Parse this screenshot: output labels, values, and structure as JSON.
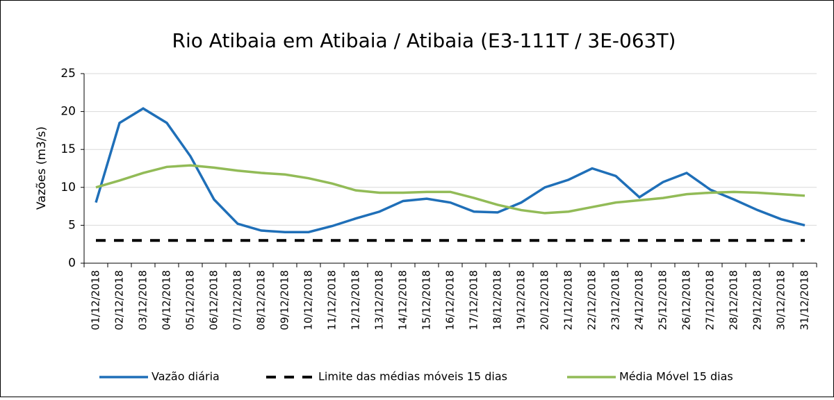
{
  "chart_data": {
    "type": "line",
    "title": "Rio Atibaia em Atibaia / Atibaia (E3-111T / 3E-063T)",
    "y_label": "Vazões (m3/s)",
    "categories": [
      "01/12/2018",
      "02/12/2018",
      "03/12/2018",
      "04/12/2018",
      "05/12/2018",
      "06/12/2018",
      "07/12/2018",
      "08/12/2018",
      "09/12/2018",
      "10/12/2018",
      "11/12/2018",
      "12/12/2018",
      "13/12/2018",
      "14/12/2018",
      "15/12/2018",
      "16/12/2018",
      "17/12/2018",
      "18/12/2018",
      "19/12/2018",
      "20/12/2018",
      "21/12/2018",
      "22/12/2018",
      "23/12/2018",
      "24/12/2018",
      "25/12/2018",
      "26/12/2018",
      "27/12/2018",
      "28/12/2018",
      "29/12/2018",
      "30/12/2018",
      "31/12/2018"
    ],
    "series": [
      {
        "name": "Vazão diária",
        "color": "#1f6fb8",
        "style": "solid",
        "values": [
          8.0,
          18.5,
          20.4,
          18.5,
          14.1,
          8.4,
          5.2,
          4.3,
          4.1,
          4.1,
          4.9,
          5.9,
          6.8,
          8.2,
          8.5,
          8.0,
          6.8,
          6.7,
          8.0,
          10.0,
          11.0,
          12.5,
          11.5,
          8.7,
          10.7,
          11.9,
          9.7,
          8.4,
          7.0,
          5.8,
          5.0
        ]
      },
      {
        "name": "Limite das médias móveis 15 dias",
        "color": "#000000",
        "style": "dashed",
        "values": [
          3,
          3,
          3,
          3,
          3,
          3,
          3,
          3,
          3,
          3,
          3,
          3,
          3,
          3,
          3,
          3,
          3,
          3,
          3,
          3,
          3,
          3,
          3,
          3,
          3,
          3,
          3,
          3,
          3,
          3,
          3
        ]
      },
      {
        "name": "Média Móvel 15 dias",
        "color": "#92bb57",
        "style": "solid",
        "values": [
          10.0,
          10.9,
          11.9,
          12.7,
          12.9,
          12.6,
          12.2,
          11.9,
          11.7,
          11.2,
          10.5,
          9.6,
          9.3,
          9.3,
          9.4,
          9.4,
          8.6,
          7.7,
          7.0,
          6.6,
          6.8,
          7.4,
          8.0,
          8.3,
          8.6,
          9.1,
          9.3,
          9.4,
          9.3,
          9.1,
          8.9
        ]
      }
    ],
    "ylim": [
      0,
      25
    ],
    "yticks": [
      0,
      5,
      10,
      15,
      20,
      25
    ],
    "grid": true,
    "legend": "bottom"
  }
}
